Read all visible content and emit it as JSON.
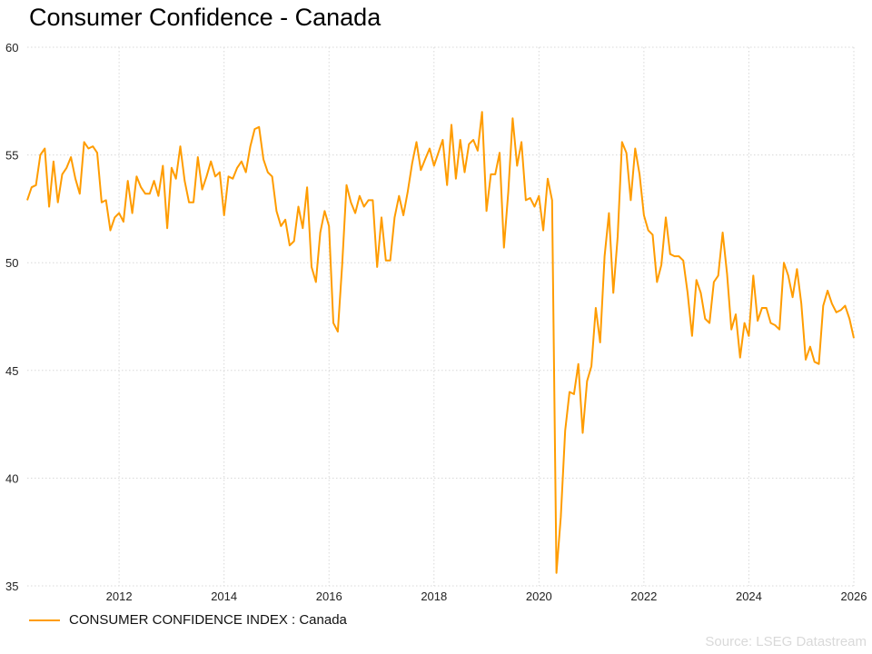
{
  "chart_data": {
    "type": "line",
    "title": "Consumer Confidence - Canada",
    "xlabel": "",
    "ylabel": "",
    "ylim": [
      35,
      60
    ],
    "xlim": [
      2010.25,
      2026.0
    ],
    "yticks": [
      "60",
      "55",
      "50",
      "45",
      "40",
      "35"
    ],
    "ytick_values": [
      60,
      55,
      50,
      45,
      40,
      35
    ],
    "xticks": [
      "2012",
      "2014",
      "2016",
      "2018",
      "2020",
      "2022",
      "2024",
      "2026"
    ],
    "xtick_values": [
      2012,
      2014,
      2016,
      2018,
      2020,
      2022,
      2024,
      2026
    ],
    "grid": true,
    "legend_position": "bottom-left",
    "start": "2010-04",
    "frequency": "monthly",
    "series": [
      {
        "name": "CONSUMER CONFIDENCE INDEX : Canada",
        "color": "#ff9c00",
        "values": [
          52.9,
          53.5,
          53.6,
          55.0,
          55.3,
          52.6,
          54.7,
          52.8,
          54.1,
          54.4,
          54.9,
          53.9,
          53.2,
          55.6,
          55.3,
          55.4,
          55.1,
          52.8,
          52.9,
          51.5,
          52.1,
          52.3,
          51.9,
          53.8,
          52.3,
          54.0,
          53.5,
          53.2,
          53.2,
          53.8,
          53.1,
          54.5,
          51.6,
          54.4,
          53.9,
          55.4,
          53.8,
          52.8,
          52.8,
          54.9,
          53.4,
          54.0,
          54.7,
          54.0,
          54.2,
          52.2,
          54.0,
          53.9,
          54.4,
          54.7,
          54.2,
          55.4,
          56.2,
          56.3,
          54.8,
          54.2,
          54.0,
          52.4,
          51.7,
          52.0,
          50.8,
          51.0,
          52.6,
          51.6,
          53.5,
          49.8,
          49.1,
          51.4,
          52.4,
          51.7,
          47.2,
          46.8,
          49.9,
          53.6,
          52.8,
          52.3,
          53.1,
          52.6,
          52.9,
          52.9,
          49.8,
          52.1,
          50.1,
          50.1,
          52.1,
          53.1,
          52.2,
          53.3,
          54.6,
          55.6,
          54.3,
          54.8,
          55.3,
          54.5,
          55.1,
          55.7,
          53.6,
          56.4,
          53.9,
          55.7,
          54.2,
          55.5,
          55.7,
          55.2,
          57.0,
          52.4,
          54.1,
          54.1,
          55.1,
          50.7,
          53.3,
          56.7,
          54.5,
          55.6,
          52.9,
          53.0,
          52.6,
          53.1,
          51.5,
          53.9,
          52.9,
          35.6,
          38.2,
          42.2,
          44.0,
          43.9,
          45.3,
          42.1,
          44.5,
          45.2,
          47.9,
          46.3,
          50.3,
          52.3,
          48.6,
          51.2,
          55.6,
          55.1,
          52.9,
          55.3,
          54.1,
          52.2,
          51.5,
          51.3,
          49.1,
          49.9,
          52.1,
          50.4,
          50.3,
          50.3,
          50.1,
          48.6,
          46.6,
          49.2,
          48.6,
          47.4,
          47.2,
          49.1,
          49.4,
          51.4,
          49.5,
          46.9,
          47.6,
          45.6,
          47.2,
          46.6,
          49.4,
          47.3,
          47.9,
          47.9,
          47.2,
          47.1,
          46.9,
          50.0,
          49.4,
          48.4,
          49.7,
          48.1,
          45.5,
          46.1,
          45.4,
          45.3,
          48.0,
          48.7,
          48.1,
          47.7,
          47.8,
          48.0,
          47.4,
          46.5
        ]
      }
    ]
  },
  "legend": {
    "label": "CONSUMER CONFIDENCE INDEX : Canada"
  },
  "source": "Source: LSEG Datastream"
}
